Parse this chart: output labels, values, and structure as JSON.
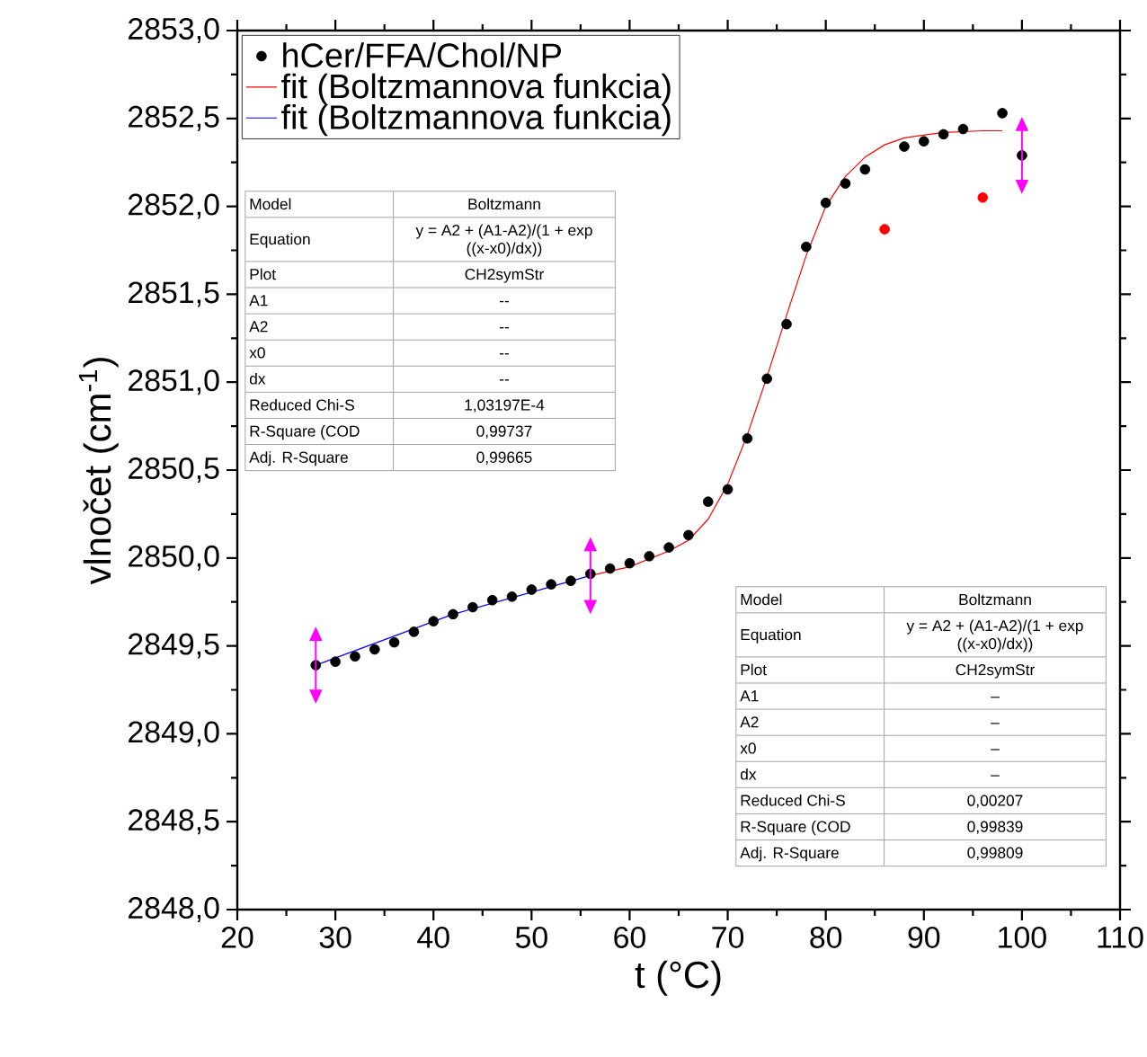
{
  "chart_data": {
    "type": "scatter",
    "xlabel": "t (°C)",
    "ylabel": "vlnočet (cm$^{-1}$)",
    "xlim": [
      20,
      110
    ],
    "xticks": [
      20,
      30,
      40,
      50,
      60,
      70,
      80,
      90,
      100,
      110
    ],
    "ylim": [
      2848,
      2853
    ],
    "yticks": [
      {
        "value": 2848,
        "label": "2848,0"
      },
      {
        "value": 2848.5,
        "label": "2848,5"
      },
      {
        "value": 2849,
        "label": "2849,0"
      },
      {
        "value": 2849.5,
        "label": "2849,5"
      },
      {
        "value": 2850,
        "label": "2850,0"
      },
      {
        "value": 2850.5,
        "label": "2850,5"
      },
      {
        "value": 2851,
        "label": "2851,0"
      },
      {
        "value": 2851.5,
        "label": "2851,5"
      },
      {
        "value": 2852,
        "label": "2852,0"
      },
      {
        "value": 2852.5,
        "label": "2852,5"
      },
      {
        "value": 2853,
        "label": "2853,0"
      }
    ],
    "legend": "top left",
    "grid": false,
    "series": [
      {
        "name": "hCer/FFA/Chol/NP",
        "marker": "circle",
        "color": "#000000",
        "x": [
          28,
          30,
          32,
          34,
          36,
          38,
          40,
          42,
          44,
          46,
          48,
          50,
          52,
          54,
          56,
          58,
          60,
          62,
          64,
          66,
          68,
          70,
          72,
          74,
          76,
          78,
          80,
          82,
          84,
          88,
          90,
          92,
          94,
          98,
          100
        ],
        "values": [
          2849.39,
          2849.41,
          2849.44,
          2849.48,
          2849.52,
          2849.58,
          2849.64,
          2849.68,
          2849.72,
          2849.76,
          2849.78,
          2849.82,
          2849.85,
          2849.87,
          2849.91,
          2849.94,
          2849.97,
          2850.01,
          2850.06,
          2850.13,
          2850.32,
          2850.39,
          2850.68,
          2851.02,
          2851.33,
          2851.77,
          2852.02,
          2852.13,
          2852.21,
          2852.34,
          2852.37,
          2852.41,
          2852.44,
          2852.53,
          2852.29
        ]
      },
      {
        "marker": "circle",
        "color": "#ff0000",
        "x": [
          86,
          96
        ],
        "values": [
          2851.87,
          2852.05
        ]
      },
      {
        "name": "fit (Boltzmannova funkcia)",
        "type": "line",
        "marker": "none",
        "color": "#ff0000",
        "x": [
          56,
          60,
          64,
          66,
          68,
          70,
          72,
          74,
          76,
          78,
          80,
          82,
          84,
          86,
          88,
          92,
          96,
          98
        ],
        "values": [
          2849.9,
          2849.95,
          2850.04,
          2850.1,
          2850.22,
          2850.42,
          2850.7,
          2851.03,
          2851.38,
          2851.72,
          2852.0,
          2852.17,
          2852.28,
          2852.35,
          2852.39,
          2852.42,
          2852.43,
          2852.43
        ]
      },
      {
        "name": "fit (Boltzmannova funkcia)",
        "type": "line",
        "marker": "none",
        "color": "#0000ff",
        "x": [
          28,
          42,
          56
        ],
        "values": [
          2849.39,
          2849.68,
          2849.9
        ]
      }
    ],
    "annotations": [
      "Model",
      "Boltzmann",
      "Equation",
      "y = A2 + (A1-A2)/(1 + exp ((x-x0)/dx))",
      "Plot",
      "CH2symStr",
      "A1",
      "--",
      "A2",
      "--",
      "x0",
      "--",
      "dx",
      "--",
      "Reduced Chi-S",
      "1,03197E-4",
      "R-Square (COD",
      "0,99737",
      "Adj. R-Square",
      "0,99665",
      "Model",
      "Boltzmann",
      "Equation",
      "y = A2 + (A1-A2)/(1 + exp ((x-x0)/dx))",
      "Plot",
      "CH2symStr",
      "A1",
      "–",
      "A2",
      "–",
      "x0",
      "–",
      "dx",
      "–",
      "Reduced Chi-S",
      "0,00207",
      "R-Square (COD",
      "0,99839",
      "Adj. R-Square",
      "0,99809"
    ]
  }
}
